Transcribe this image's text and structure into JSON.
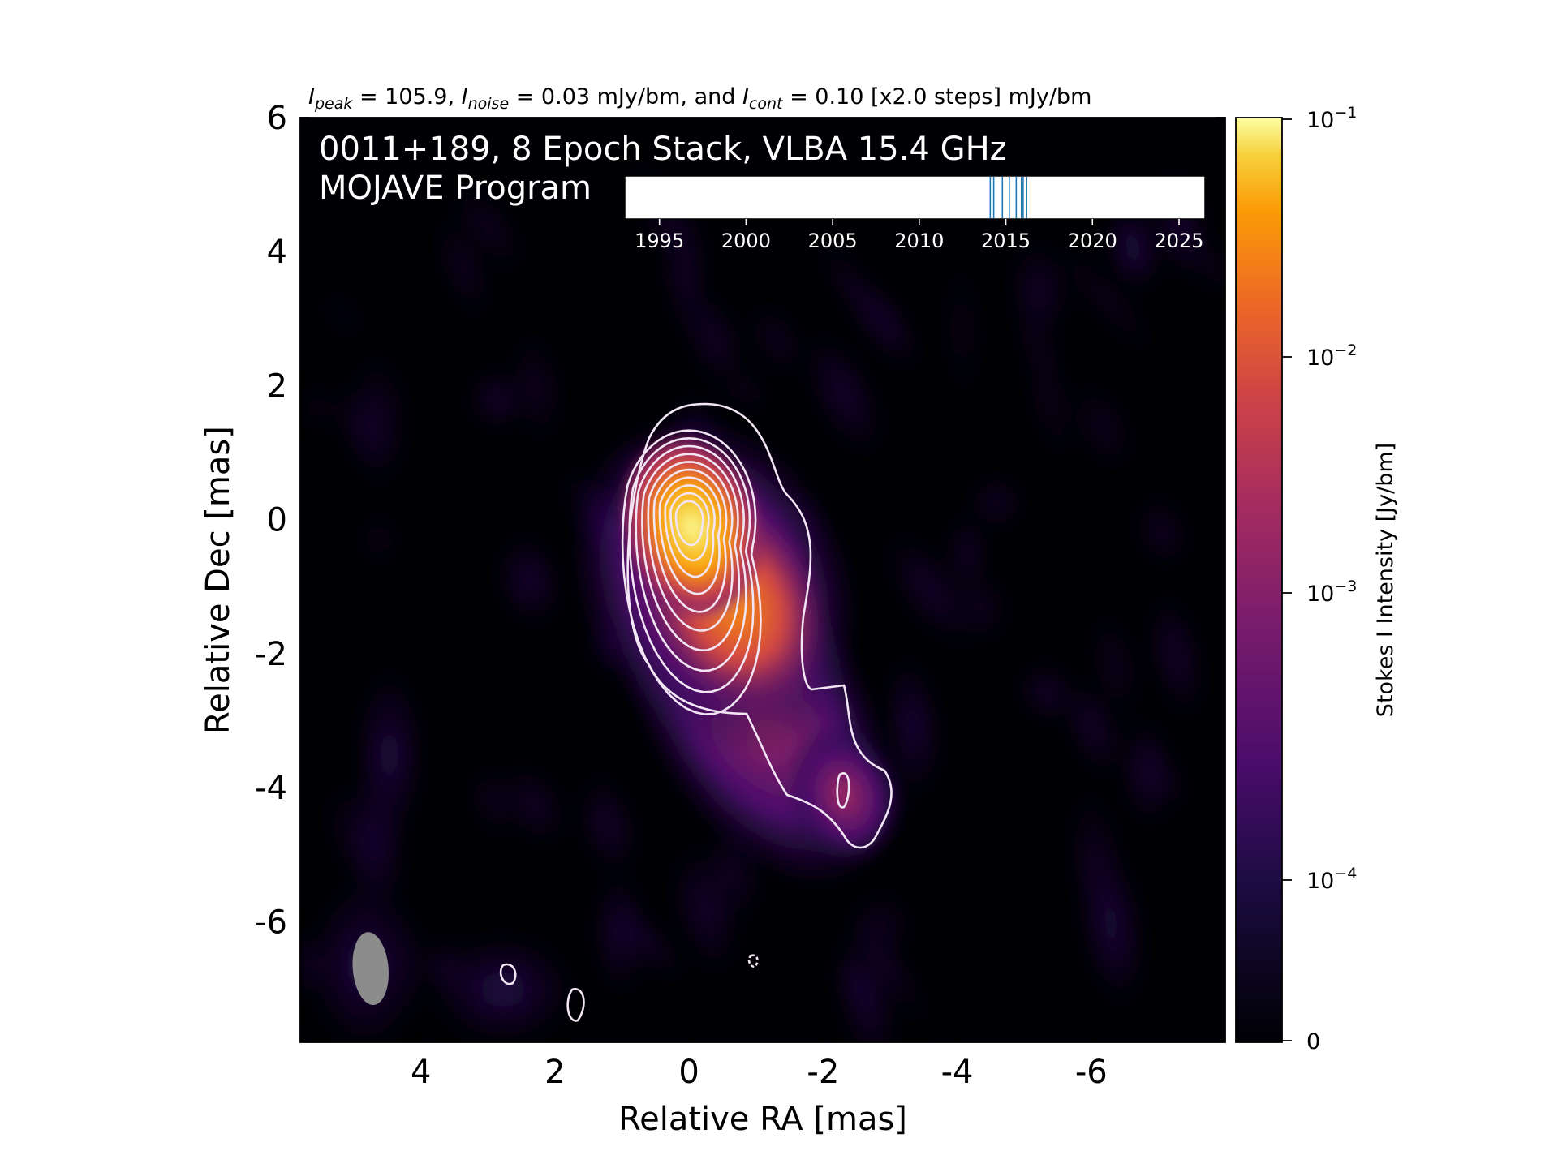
{
  "chart_data": {
    "type": "heatmap",
    "header": {
      "peak_sym": "I",
      "peak_sub": "peak",
      "peak_val": " = 105.9, ",
      "noise_sym": "I",
      "noise_sub": "noise",
      "noise_val": " = 0.03 mJy/bm, and ",
      "cont_sym": "I",
      "cont_sub": "cont",
      "cont_val": " = 0.10 [x2.0 steps] mJy/bm"
    },
    "title_line1": "0011+189, 8 Epoch Stack, VLBA 15.4 GHz",
    "title_line2": "MOJAVE Program",
    "xlabel": "Relative RA [mas]",
    "ylabel": "Relative Dec [mas]",
    "x_range": [
      5.8,
      -8.0
    ],
    "y_range": [
      -7.8,
      6.0
    ],
    "x_ticks": [
      4,
      2,
      0,
      -2,
      -4,
      -6
    ],
    "y_ticks": [
      6,
      4,
      2,
      0,
      -2,
      -4,
      -6
    ],
    "x_tick_labels": [
      "4",
      "2",
      "0",
      "-2",
      "-4",
      "-6"
    ],
    "y_tick_labels": [
      "6",
      "4",
      "2",
      "0",
      "-2",
      "-4",
      "-6"
    ],
    "colorbar": {
      "label": "Stokes I Intensity [Jy/bm]",
      "scale": "symlog",
      "ticks": [
        {
          "base": "10",
          "exp": "−1",
          "value": 0.1
        },
        {
          "base": "10",
          "exp": "−2",
          "value": 0.01
        },
        {
          "base": "10",
          "exp": "−3",
          "value": 0.001
        },
        {
          "base": "10",
          "exp": "−4",
          "value": 0.0001
        },
        {
          "base": "0",
          "exp": "",
          "value": 0
        }
      ],
      "colormap": [
        "#000004",
        "#280b54",
        "#65156e",
        "#9f2a63",
        "#d44842",
        "#f57d15",
        "#fac228",
        "#fcffa4"
      ]
    },
    "epoch_inset": {
      "x_range": [
        1993,
        2026.5
      ],
      "ticks": [
        1995,
        2000,
        2005,
        2010,
        2015,
        2020,
        2025
      ],
      "tick_labels": [
        "1995",
        "2000",
        "2005",
        "2010",
        "2015",
        "2020",
        "2025"
      ],
      "epochs": [
        2014.1,
        2014.3,
        2014.8,
        2015.2,
        2015.6,
        2015.9,
        2016.0,
        2016.2
      ]
    },
    "core_position": [
      0,
      0
    ],
    "peak_jy_per_beam": 0.1059,
    "contour_levels_mjy": [
      0.1,
      0.2,
      0.4,
      0.8,
      1.6,
      3.2,
      6.4,
      12.8,
      25.6,
      51.2
    ],
    "beam": {
      "major_mas": 1.1,
      "minor_mas": 0.55,
      "pa_deg": -5
    },
    "colors": {
      "contour": "#f2e6f5",
      "epoch_line": "#1f77b4",
      "beam": "#8c8c8c"
    }
  }
}
